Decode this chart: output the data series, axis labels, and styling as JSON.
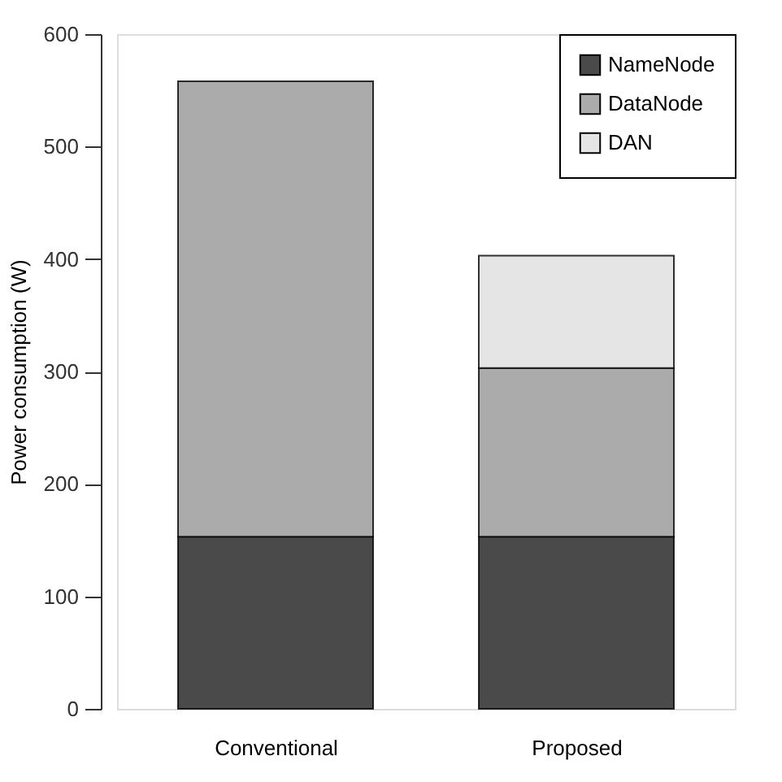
{
  "chart_data": {
    "type": "bar",
    "stacked": true,
    "ylabel": "Power consumption (W)",
    "categories": [
      "Conventional",
      "Proposed"
    ],
    "series": [
      {
        "name": "NameNode",
        "color": "#4a4a4a",
        "values": [
          153,
          153
        ]
      },
      {
        "name": "DataNode",
        "color": "#ababab",
        "values": [
          405,
          150
        ]
      },
      {
        "name": "DAN",
        "color": "#e5e5e5",
        "values": [
          null,
          100
        ]
      }
    ],
    "ylim": [
      0,
      600
    ],
    "yticks": [
      0,
      100,
      200,
      300,
      400,
      500,
      600
    ],
    "grid": false,
    "legend": "top right"
  }
}
